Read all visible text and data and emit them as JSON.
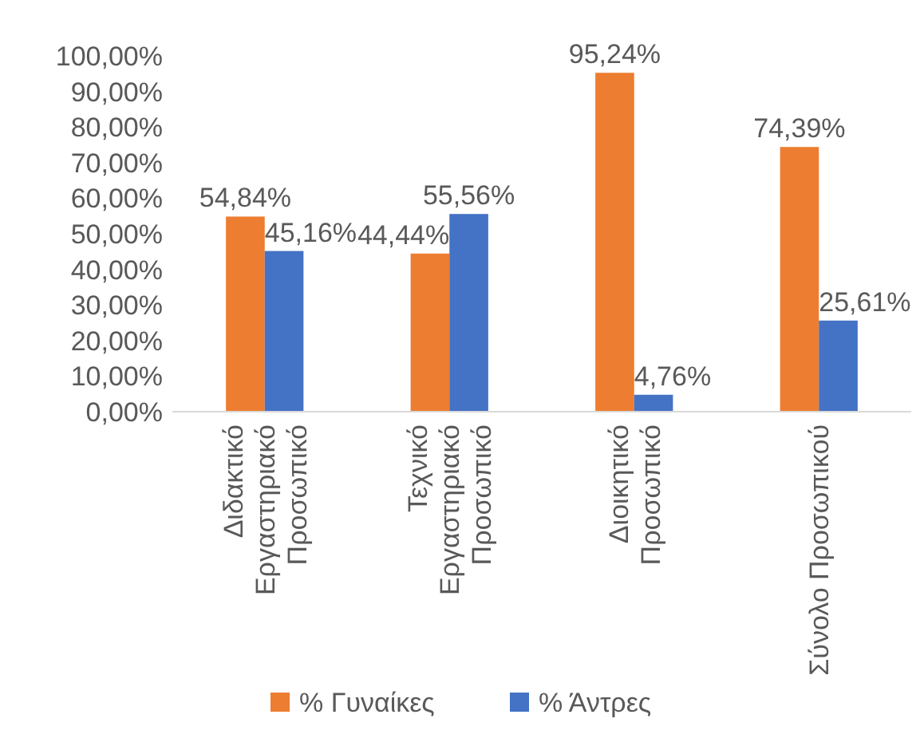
{
  "chart_data": {
    "type": "bar",
    "categories": [
      "Διδακτικό\nΕργαστηριακό\nΠροσωπικό",
      "Τεχνικό\nΕργαστηριακό\nΠροσωπικό",
      "Διοικητικό\nΠροσωπικό",
      "Σύνολο Προσωπικού"
    ],
    "series": [
      {
        "name": "% Γυναίκες",
        "color": "#ed7d31",
        "values": [
          54.84,
          44.44,
          95.24,
          74.39
        ],
        "value_labels": [
          "54,84%",
          "44,44%",
          "95,24%",
          "74,39%"
        ]
      },
      {
        "name": "% Άντρες",
        "color": "#4472c4",
        "values": [
          45.16,
          55.56,
          4.76,
          25.61
        ],
        "value_labels": [
          "45,16%",
          "55,56%",
          "4,76%",
          "25,61%"
        ]
      }
    ],
    "ylim": [
      0,
      100
    ],
    "yticks": [
      {
        "value": 0,
        "label": "0,00%"
      },
      {
        "value": 10,
        "label": "10,00%"
      },
      {
        "value": 20,
        "label": "20,00%"
      },
      {
        "value": 30,
        "label": "30,00%"
      },
      {
        "value": 40,
        "label": "40,00%"
      },
      {
        "value": 50,
        "label": "50,00%"
      },
      {
        "value": 60,
        "label": "60,00%"
      },
      {
        "value": 70,
        "label": "70,00%"
      },
      {
        "value": 80,
        "label": "80,00%"
      },
      {
        "value": 90,
        "label": "90,00%"
      },
      {
        "value": 100,
        "label": "100,00%"
      }
    ],
    "grid": false,
    "legend": "bottom"
  }
}
